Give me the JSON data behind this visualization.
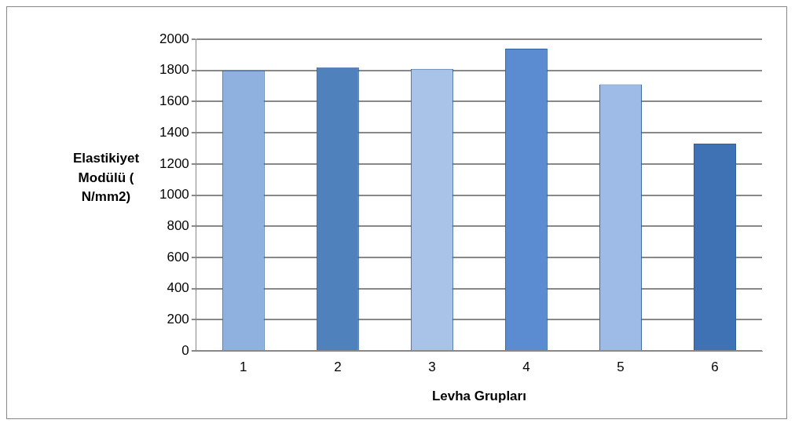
{
  "chart_data": {
    "type": "bar",
    "xlabel": "Levha Grupları",
    "ylabel": "Elastikiyet Modülü ( N/mm2)",
    "categories": [
      "1",
      "2",
      "3",
      "4",
      "5",
      "6"
    ],
    "values": [
      1800,
      1820,
      1810,
      1940,
      1710,
      1330
    ],
    "colors": [
      "#8fb1e0",
      "#4f81bd",
      "#a9c2e8",
      "#5b8bd0",
      "#9dbbe6",
      "#3f72b5"
    ],
    "ylim": [
      0,
      2000
    ],
    "yticks": [
      0,
      200,
      400,
      600,
      800,
      1000,
      1200,
      1400,
      1600,
      1800,
      2000
    ],
    "grid": "y"
  }
}
